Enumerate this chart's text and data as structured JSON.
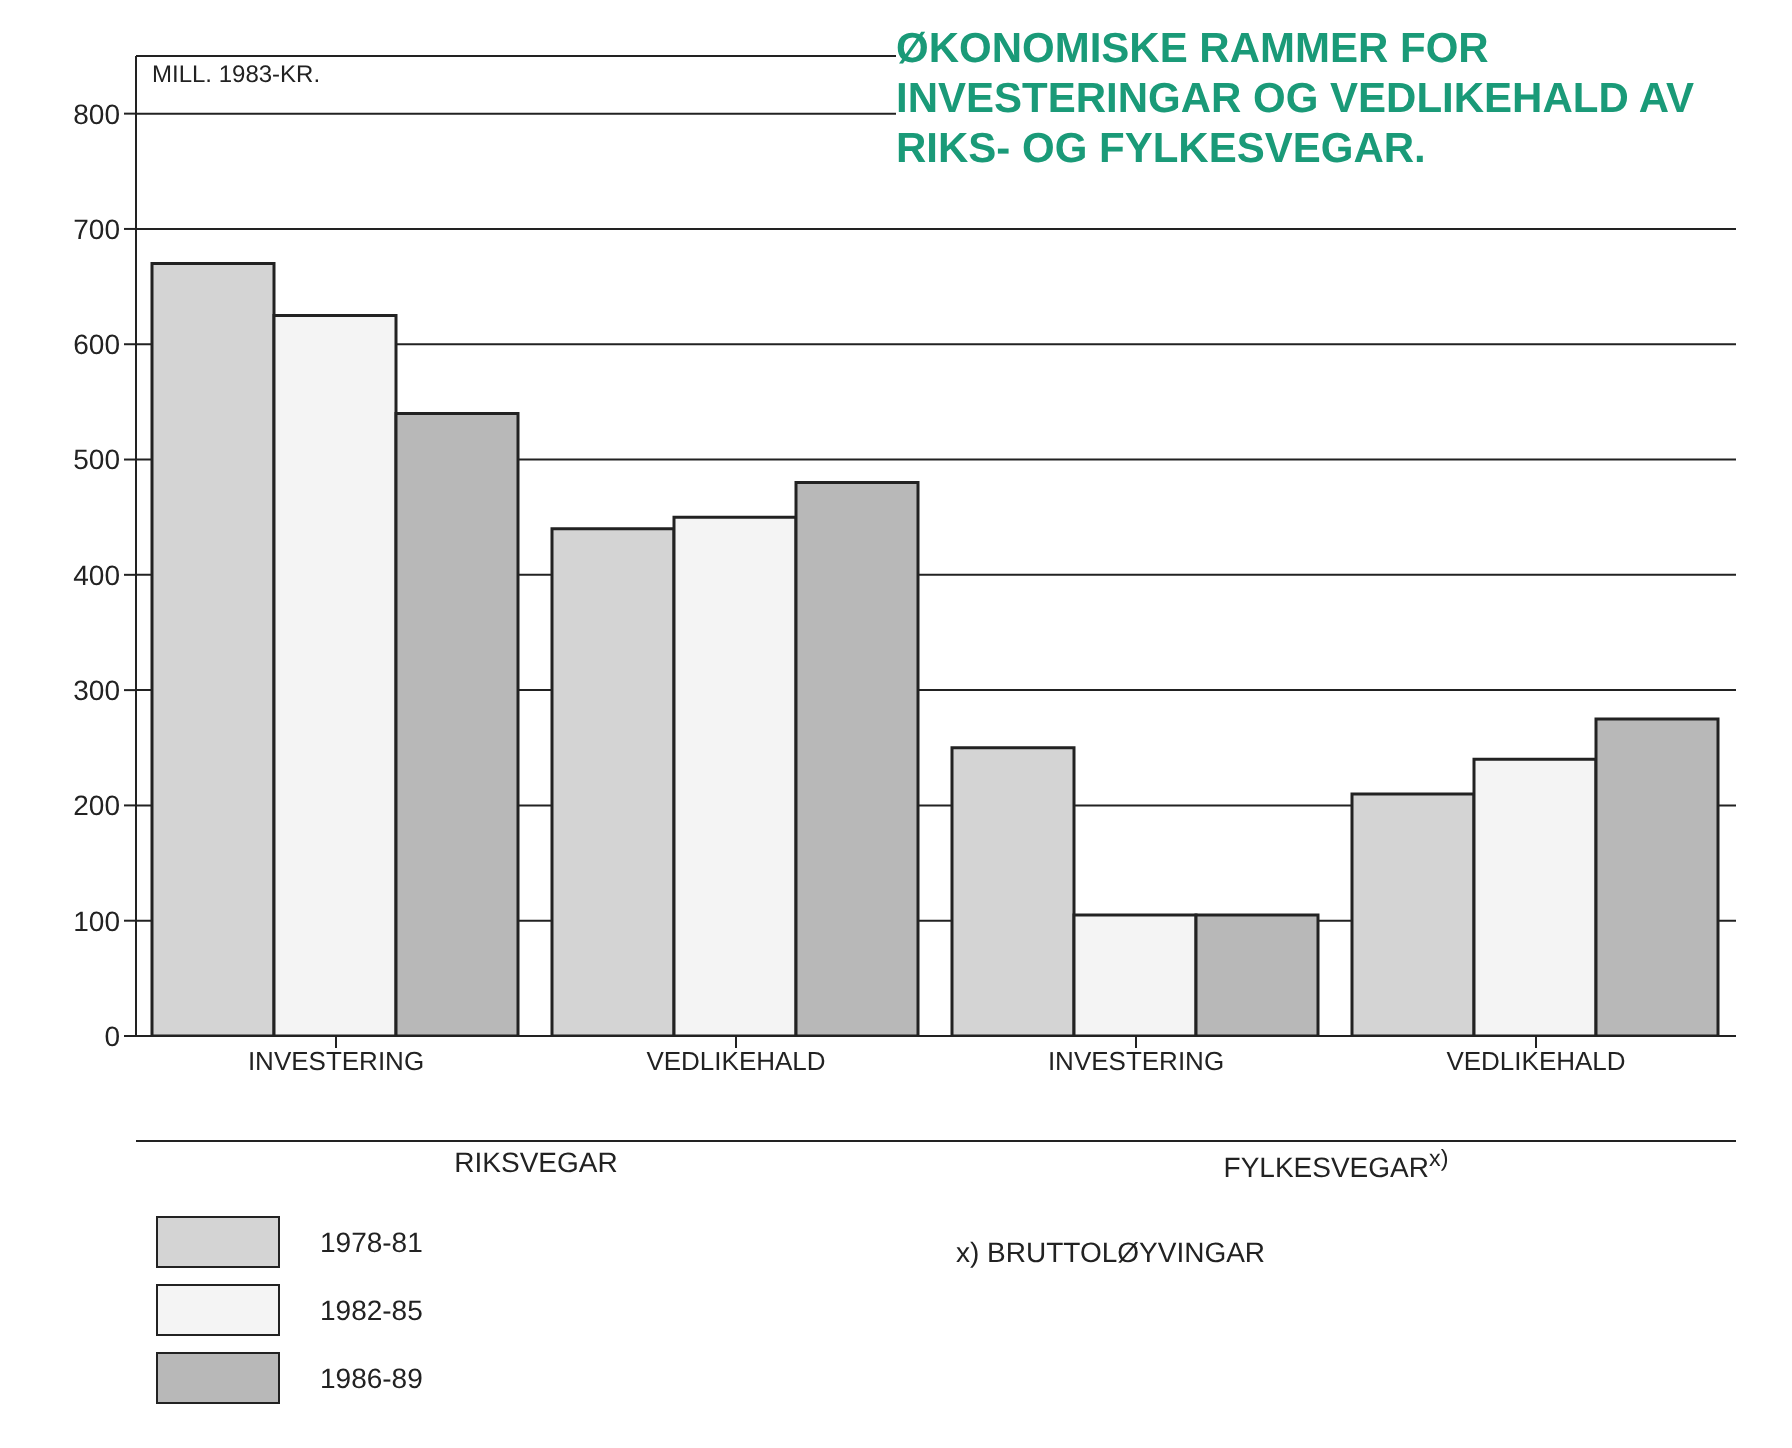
{
  "chart_data": {
    "type": "bar",
    "title": "ØKONOMISKE RAMMER FOR INVESTERINGAR OG VEDLIKEHALD AV RIKS- OG FYLKESVEGAR.",
    "ylabel": "MILL. 1983-KR.",
    "categories": [
      "INVESTERING",
      "VEDLIKEHALD",
      "INVESTERING",
      "VEDLIKEHALD"
    ],
    "series": [
      {
        "name": "1978-81",
        "color": "#d4d4d4",
        "values": [
          670,
          440,
          250,
          210
        ]
      },
      {
        "name": "1982-85",
        "color": "#f4f4f4",
        "values": [
          625,
          450,
          105,
          240
        ]
      },
      {
        "name": "1986-89",
        "color": "#b8b8b8",
        "values": [
          540,
          480,
          105,
          275
        ]
      }
    ],
    "ylim": [
      0,
      850
    ],
    "yticks": [
      0,
      100,
      200,
      300,
      400,
      500,
      600,
      700,
      800
    ],
    "grid": "y",
    "legend": "bottom left",
    "annotations": [
      "RIKSVEGAR",
      "FYLKESVEGAR$^{x)}$",
      "x) BRUTTOLØYVINGAR"
    ]
  }
}
